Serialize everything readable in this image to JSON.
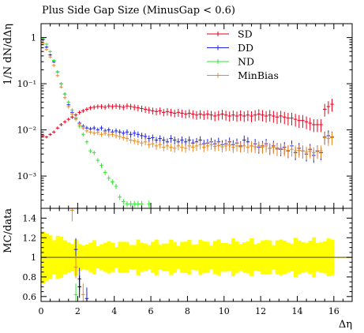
{
  "chart_data": {
    "type": "scatter",
    "title": "Plus Side Gap Size (MinusGap < 0.6)",
    "xlabel": "Δη",
    "ylabel_top": "1/N dN/dΔη",
    "ylabel_bottom": "MC/data",
    "xlim": [
      0,
      17
    ],
    "top_ylim": [
      0.0002,
      2
    ],
    "top_yscale": "log",
    "bottom_ylim": [
      0.55,
      1.5
    ],
    "x_ticks": [
      "0",
      "2",
      "4",
      "6",
      "8",
      "10",
      "12",
      "14",
      "16"
    ],
    "top_y_ticks": [
      {
        "value": 1,
        "label": "1"
      },
      {
        "value": 0.1,
        "label": "10⁻¹"
      },
      {
        "value": 0.01,
        "label": "10⁻²"
      },
      {
        "value": 0.001,
        "label": "10⁻³"
      }
    ],
    "bottom_y_ticks": [
      "0.6",
      "0.8",
      "1",
      "1.2",
      "1.4"
    ],
    "legend_position": "top-right",
    "series": [
      {
        "name": "SD",
        "color": "#e8001c",
        "points": [
          [
            0.1,
            0.0075
          ],
          [
            0.3,
            0.007
          ],
          [
            0.5,
            0.008
          ],
          [
            0.7,
            0.009
          ],
          [
            0.9,
            0.011
          ],
          [
            1.1,
            0.013
          ],
          [
            1.3,
            0.015
          ],
          [
            1.5,
            0.017
          ],
          [
            1.7,
            0.019
          ],
          [
            1.9,
            0.021
          ],
          [
            2.1,
            0.024
          ],
          [
            2.3,
            0.026
          ],
          [
            2.5,
            0.028
          ],
          [
            2.7,
            0.03
          ],
          [
            2.9,
            0.031
          ],
          [
            3.1,
            0.032
          ],
          [
            3.3,
            0.032
          ],
          [
            3.5,
            0.031
          ],
          [
            3.7,
            0.033
          ],
          [
            3.9,
            0.032
          ],
          [
            4.1,
            0.033
          ],
          [
            4.3,
            0.032
          ],
          [
            4.5,
            0.031
          ],
          [
            4.7,
            0.033
          ],
          [
            4.9,
            0.032
          ],
          [
            5.1,
            0.031
          ],
          [
            5.3,
            0.03
          ],
          [
            5.5,
            0.029
          ],
          [
            5.7,
            0.028
          ],
          [
            5.9,
            0.027
          ],
          [
            6.1,
            0.026
          ],
          [
            6.3,
            0.025
          ],
          [
            6.5,
            0.026
          ],
          [
            6.7,
            0.024
          ],
          [
            6.9,
            0.025
          ],
          [
            7.1,
            0.024
          ],
          [
            7.3,
            0.023
          ],
          [
            7.5,
            0.024
          ],
          [
            7.7,
            0.023
          ],
          [
            7.9,
            0.022
          ],
          [
            8.1,
            0.023
          ],
          [
            8.3,
            0.022
          ],
          [
            8.5,
            0.021
          ],
          [
            8.7,
            0.022
          ],
          [
            8.9,
            0.021
          ],
          [
            9.1,
            0.022
          ],
          [
            9.3,
            0.021
          ],
          [
            9.5,
            0.02
          ],
          [
            9.7,
            0.021
          ],
          [
            9.9,
            0.022
          ],
          [
            10.1,
            0.021
          ],
          [
            10.3,
            0.02
          ],
          [
            10.5,
            0.021
          ],
          [
            10.7,
            0.02
          ],
          [
            10.9,
            0.021
          ],
          [
            11.1,
            0.02
          ],
          [
            11.3,
            0.021
          ],
          [
            11.5,
            0.02
          ],
          [
            11.7,
            0.021
          ],
          [
            11.9,
            0.022
          ],
          [
            12.1,
            0.021
          ],
          [
            12.3,
            0.02
          ],
          [
            12.5,
            0.021
          ],
          [
            12.7,
            0.02
          ],
          [
            12.9,
            0.019
          ],
          [
            13.1,
            0.02
          ],
          [
            13.3,
            0.019
          ],
          [
            13.5,
            0.018
          ],
          [
            13.7,
            0.018
          ],
          [
            13.9,
            0.017
          ],
          [
            14.1,
            0.016
          ],
          [
            14.3,
            0.016
          ],
          [
            14.5,
            0.015
          ],
          [
            14.7,
            0.014
          ],
          [
            14.9,
            0.013
          ],
          [
            15.1,
            0.013
          ],
          [
            15.3,
            0.013
          ],
          [
            15.5,
            0.028
          ],
          [
            15.7,
            0.032
          ],
          [
            15.9,
            0.036
          ]
        ]
      },
      {
        "name": "DD",
        "color": "#1f1fe8",
        "points": [
          [
            0.1,
            0.9
          ],
          [
            0.3,
            0.62
          ],
          [
            0.5,
            0.42
          ],
          [
            0.7,
            0.3
          ],
          [
            0.9,
            0.18
          ],
          [
            1.1,
            0.1
          ],
          [
            1.3,
            0.06
          ],
          [
            1.5,
            0.035
          ],
          [
            1.7,
            0.024
          ],
          [
            1.9,
            0.018
          ],
          [
            2.1,
            0.014
          ],
          [
            2.3,
            0.012
          ],
          [
            2.5,
            0.011
          ],
          [
            2.7,
            0.0105
          ],
          [
            2.9,
            0.011
          ],
          [
            3.1,
            0.01
          ],
          [
            3.3,
            0.011
          ],
          [
            3.5,
            0.0095
          ],
          [
            3.7,
            0.01
          ],
          [
            3.9,
            0.009
          ],
          [
            4.1,
            0.0095
          ],
          [
            4.3,
            0.009
          ],
          [
            4.5,
            0.0085
          ],
          [
            4.7,
            0.009
          ],
          [
            4.9,
            0.008
          ],
          [
            5.1,
            0.0085
          ],
          [
            5.3,
            0.008
          ],
          [
            5.5,
            0.0075
          ],
          [
            5.7,
            0.0072
          ],
          [
            5.9,
            0.0065
          ],
          [
            6.1,
            0.0068
          ],
          [
            6.3,
            0.006
          ],
          [
            6.5,
            0.0065
          ],
          [
            6.7,
            0.006
          ],
          [
            6.9,
            0.0055
          ],
          [
            7.1,
            0.0065
          ],
          [
            7.3,
            0.006
          ],
          [
            7.5,
            0.0055
          ],
          [
            7.7,
            0.006
          ],
          [
            7.9,
            0.0055
          ],
          [
            8.1,
            0.006
          ],
          [
            8.3,
            0.0052
          ],
          [
            8.5,
            0.0055
          ],
          [
            8.7,
            0.006
          ],
          [
            8.9,
            0.005
          ],
          [
            9.1,
            0.0052
          ],
          [
            9.3,
            0.0055
          ],
          [
            9.5,
            0.005
          ],
          [
            9.7,
            0.0055
          ],
          [
            9.9,
            0.0048
          ],
          [
            10.1,
            0.005
          ],
          [
            10.3,
            0.0055
          ],
          [
            10.5,
            0.0048
          ],
          [
            10.7,
            0.0052
          ],
          [
            10.9,
            0.0045
          ],
          [
            11.1,
            0.006
          ],
          [
            11.3,
            0.0055
          ],
          [
            11.5,
            0.0045
          ],
          [
            11.7,
            0.005
          ],
          [
            11.9,
            0.0042
          ],
          [
            12.1,
            0.0045
          ],
          [
            12.3,
            0.005
          ],
          [
            12.5,
            0.004
          ],
          [
            12.7,
            0.0045
          ],
          [
            12.9,
            0.004
          ],
          [
            13.1,
            0.0038
          ],
          [
            13.3,
            0.0042
          ],
          [
            13.5,
            0.0035
          ],
          [
            13.7,
            0.0045
          ],
          [
            13.9,
            0.0032
          ],
          [
            14.1,
            0.004
          ],
          [
            14.3,
            0.0035
          ],
          [
            14.5,
            0.003
          ],
          [
            14.7,
            0.0038
          ],
          [
            14.9,
            0.0028
          ],
          [
            15.1,
            0.0035
          ],
          [
            15.3,
            0.0032
          ],
          [
            15.5,
            0.007
          ],
          [
            15.7,
            0.0075
          ],
          [
            15.9,
            0.007
          ]
        ]
      },
      {
        "name": "ND",
        "color": "#2ee82e",
        "points": [
          [
            0.1,
            0.95
          ],
          [
            0.3,
            0.72
          ],
          [
            0.5,
            0.5
          ],
          [
            0.7,
            0.32
          ],
          [
            0.9,
            0.18
          ],
          [
            1.1,
            0.1
          ],
          [
            1.3,
            0.06
          ],
          [
            1.5,
            0.04
          ],
          [
            1.7,
            0.027
          ],
          [
            1.9,
            0.018
          ],
          [
            2.1,
            0.012
          ],
          [
            2.3,
            0.008
          ],
          [
            2.5,
            0.0055
          ],
          [
            2.7,
            0.0035
          ],
          [
            2.9,
            0.0032
          ],
          [
            3.1,
            0.0022
          ],
          [
            3.3,
            0.0017
          ],
          [
            3.5,
            0.0012
          ],
          [
            3.7,
            0.0009
          ],
          [
            3.9,
            0.00075
          ],
          [
            4.1,
            0.0006
          ],
          [
            4.3,
            0.00035
          ],
          [
            4.5,
            0.00028
          ],
          [
            4.7,
            0.00025
          ],
          [
            4.9,
            0.00025
          ],
          [
            5.1,
            0.00025
          ],
          [
            5.3,
            0.00025
          ],
          [
            5.5,
            0.00025
          ],
          [
            5.9,
            0.00025
          ]
        ]
      },
      {
        "name": "MinBias",
        "color": "#e88a1f",
        "points": [
          [
            0.1,
            0.75
          ],
          [
            0.3,
            0.55
          ],
          [
            0.5,
            0.38
          ],
          [
            0.7,
            0.25
          ],
          [
            0.9,
            0.15
          ],
          [
            1.1,
            0.085
          ],
          [
            1.3,
            0.05
          ],
          [
            1.5,
            0.032
          ],
          [
            1.7,
            0.022
          ],
          [
            1.9,
            0.017
          ],
          [
            2.1,
            0.013
          ],
          [
            2.3,
            0.011
          ],
          [
            2.5,
            0.0095
          ],
          [
            2.7,
            0.009
          ],
          [
            2.9,
            0.0085
          ],
          [
            3.1,
            0.0088
          ],
          [
            3.3,
            0.008
          ],
          [
            3.5,
            0.0085
          ],
          [
            3.7,
            0.0078
          ],
          [
            3.9,
            0.008
          ],
          [
            4.1,
            0.0075
          ],
          [
            4.3,
            0.0072
          ],
          [
            4.5,
            0.0068
          ],
          [
            4.7,
            0.0065
          ],
          [
            4.9,
            0.006
          ],
          [
            5.1,
            0.0058
          ],
          [
            5.3,
            0.0055
          ],
          [
            5.5,
            0.0052
          ],
          [
            5.7,
            0.0055
          ],
          [
            5.9,
            0.0048
          ],
          [
            6.1,
            0.005
          ],
          [
            6.3,
            0.0045
          ],
          [
            6.5,
            0.0048
          ],
          [
            6.7,
            0.0042
          ],
          [
            6.9,
            0.0045
          ],
          [
            7.1,
            0.0042
          ],
          [
            7.3,
            0.004
          ],
          [
            7.5,
            0.0045
          ],
          [
            7.7,
            0.0042
          ],
          [
            7.9,
            0.004
          ],
          [
            8.1,
            0.0045
          ],
          [
            8.3,
            0.0042
          ],
          [
            8.5,
            0.0045
          ],
          [
            8.7,
            0.0048
          ],
          [
            8.9,
            0.0042
          ],
          [
            9.1,
            0.0045
          ],
          [
            9.3,
            0.0048
          ],
          [
            9.5,
            0.0044
          ],
          [
            9.7,
            0.0046
          ],
          [
            9.9,
            0.0043
          ],
          [
            10.1,
            0.0045
          ],
          [
            10.3,
            0.0047
          ],
          [
            10.5,
            0.0042
          ],
          [
            10.7,
            0.0045
          ],
          [
            10.9,
            0.0043
          ],
          [
            11.1,
            0.0045
          ],
          [
            11.3,
            0.0042
          ],
          [
            11.5,
            0.0045
          ],
          [
            11.7,
            0.0043
          ],
          [
            11.9,
            0.0045
          ],
          [
            12.1,
            0.0042
          ],
          [
            12.3,
            0.0045
          ],
          [
            12.5,
            0.004
          ],
          [
            12.7,
            0.0042
          ],
          [
            12.9,
            0.0038
          ],
          [
            13.1,
            0.004
          ],
          [
            13.3,
            0.0038
          ],
          [
            13.5,
            0.0036
          ],
          [
            13.7,
            0.0038
          ],
          [
            13.9,
            0.0035
          ],
          [
            14.1,
            0.0036
          ],
          [
            14.3,
            0.0035
          ],
          [
            14.5,
            0.0033
          ],
          [
            14.7,
            0.0035
          ],
          [
            14.9,
            0.0032
          ],
          [
            15.1,
            0.0034
          ],
          [
            15.3,
            0.0035
          ],
          [
            15.5,
            0.0068
          ],
          [
            15.7,
            0.0065
          ],
          [
            15.9,
            0.0068
          ]
        ]
      }
    ],
    "ratio": {
      "reference_band_color": "#ffff00",
      "reference_line_color": "#706f00",
      "band_halfwidth_start": 0.25,
      "band_halfwidth_mid": 0.14,
      "band_halfwidth_end": 0.17,
      "points": [
        {
          "x": 1.7,
          "y": 1.48,
          "color": "#e88a1f"
        },
        {
          "x": 1.9,
          "y": 1.08,
          "color": "#1f1fe8"
        },
        {
          "x": 1.9,
          "y": 0.9,
          "color": "#e88a1f"
        },
        {
          "x": 2.1,
          "y": 0.78,
          "color": "#1f1fe8"
        },
        {
          "x": 2.1,
          "y": 0.7,
          "color": "#000000"
        },
        {
          "x": 2.3,
          "y": 0.62,
          "color": "#e88a1f"
        },
        {
          "x": 2.5,
          "y": 0.58,
          "color": "#1f1fe8"
        },
        {
          "x": 1.9,
          "y": 0.62,
          "color": "#2ee82e"
        }
      ]
    }
  }
}
